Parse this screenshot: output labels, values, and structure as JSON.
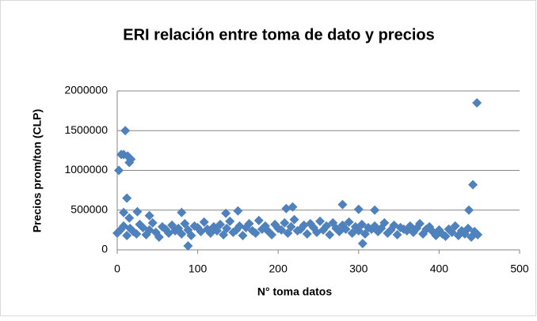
{
  "chart_data": {
    "type": "scatter",
    "title": "ERI relación entre toma de dato y precios",
    "x_label": "N° toma datos",
    "y_label": "Precios prom/ton (CLP)",
    "color": "#4f81bd",
    "grid": true,
    "xlim": [
      0,
      500
    ],
    "xticks": [
      0,
      100,
      200,
      300,
      400,
      500
    ],
    "ylim": [
      0,
      2000000
    ],
    "yticks": [
      0,
      500000,
      1000000,
      1500000,
      2000000
    ],
    "x": [
      0,
      4,
      8,
      12,
      16,
      20,
      24,
      28,
      32,
      36,
      40,
      44,
      48,
      52,
      56,
      60,
      64,
      68,
      72,
      76,
      80,
      84,
      88,
      92,
      96,
      100,
      104,
      108,
      112,
      116,
      120,
      124,
      128,
      132,
      136,
      140,
      144,
      148,
      152,
      156,
      160,
      164,
      168,
      172,
      176,
      180,
      184,
      188,
      192,
      196,
      200,
      204,
      208,
      212,
      216,
      220,
      224,
      228,
      232,
      236,
      240,
      244,
      248,
      252,
      256,
      260,
      264,
      268,
      272,
      276,
      280,
      284,
      288,
      292,
      296,
      300,
      304,
      308,
      312,
      316,
      320,
      324,
      328,
      332,
      336,
      340,
      344,
      348,
      352,
      356,
      360,
      364,
      368,
      372,
      376,
      380,
      384,
      388,
      392,
      396,
      400,
      404,
      408,
      412,
      416,
      420,
      424,
      428,
      432,
      436,
      440,
      444,
      448,
      2,
      5,
      8,
      10,
      13,
      15,
      17,
      12,
      8,
      15,
      447,
      442,
      437,
      88,
      305,
      280,
      218,
      210,
      320,
      300,
      150,
      135,
      80,
      40,
      25
    ],
    "y": [
      210000,
      250000,
      300000,
      180000,
      270000,
      230000,
      200000,
      320000,
      280000,
      190000,
      250000,
      340000,
      220000,
      160000,
      290000,
      260000,
      210000,
      310000,
      240000,
      270000,
      200000,
      330000,
      250000,
      180000,
      300000,
      280000,
      230000,
      350000,
      260000,
      210000,
      290000,
      240000,
      320000,
      190000,
      270000,
      360000,
      220000,
      250000,
      300000,
      180000,
      280000,
      330000,
      240000,
      210000,
      370000,
      260000,
      300000,
      230000,
      190000,
      320000,
      270000,
      250000,
      340000,
      210000,
      290000,
      380000,
      240000,
      260000,
      310000,
      200000,
      330000,
      280000,
      220000,
      360000,
      250000,
      300000,
      190000,
      340000,
      270000,
      230000,
      310000,
      260000,
      350000,
      210000,
      290000,
      240000,
      320000,
      200000,
      280000,
      260000,
      300000,
      230000,
      270000,
      340000,
      210000,
      250000,
      310000,
      190000,
      280000,
      260000,
      240000,
      300000,
      220000,
      270000,
      330000,
      200000,
      260000,
      290000,
      230000,
      180000,
      250000,
      200000,
      170000,
      260000,
      220000,
      300000,
      180000,
      240000,
      200000,
      270000,
      160000,
      230000,
      190000,
      1000000,
      1200000,
      1200000,
      1500000,
      1180000,
      1100000,
      1140000,
      650000,
      470000,
      400000,
      1850000,
      820000,
      500000,
      50000,
      80000,
      570000,
      540000,
      520000,
      500000,
      510000,
      490000,
      460000,
      470000,
      430000,
      480000
    ]
  }
}
